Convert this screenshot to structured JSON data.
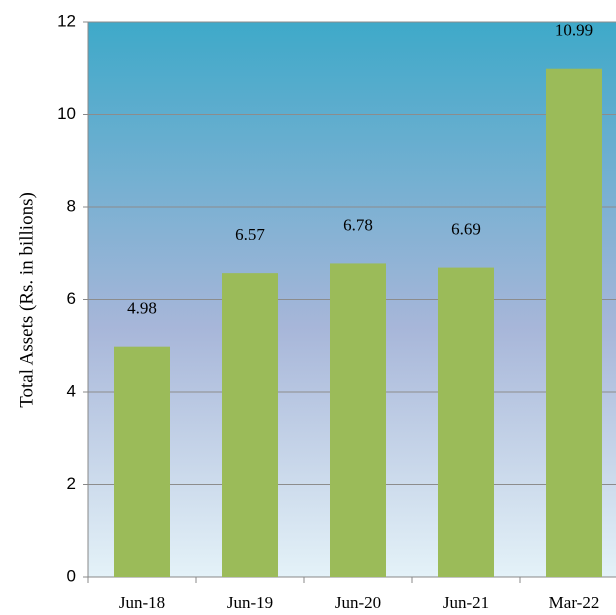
{
  "chart_data": {
    "type": "bar",
    "y_label": "Total Assets  (Rs. in billions)",
    "categories": [
      "Jun-18",
      "Jun-19",
      "Jun-20",
      "Jun-21",
      "Mar-22"
    ],
    "values": [
      4.98,
      6.57,
      6.78,
      6.69,
      10.99
    ],
    "color": "#9bbb59",
    "ylim": [
      0,
      12
    ],
    "yticks": [
      0,
      2,
      4,
      6,
      8,
      10,
      12
    ],
    "grid": true
  }
}
